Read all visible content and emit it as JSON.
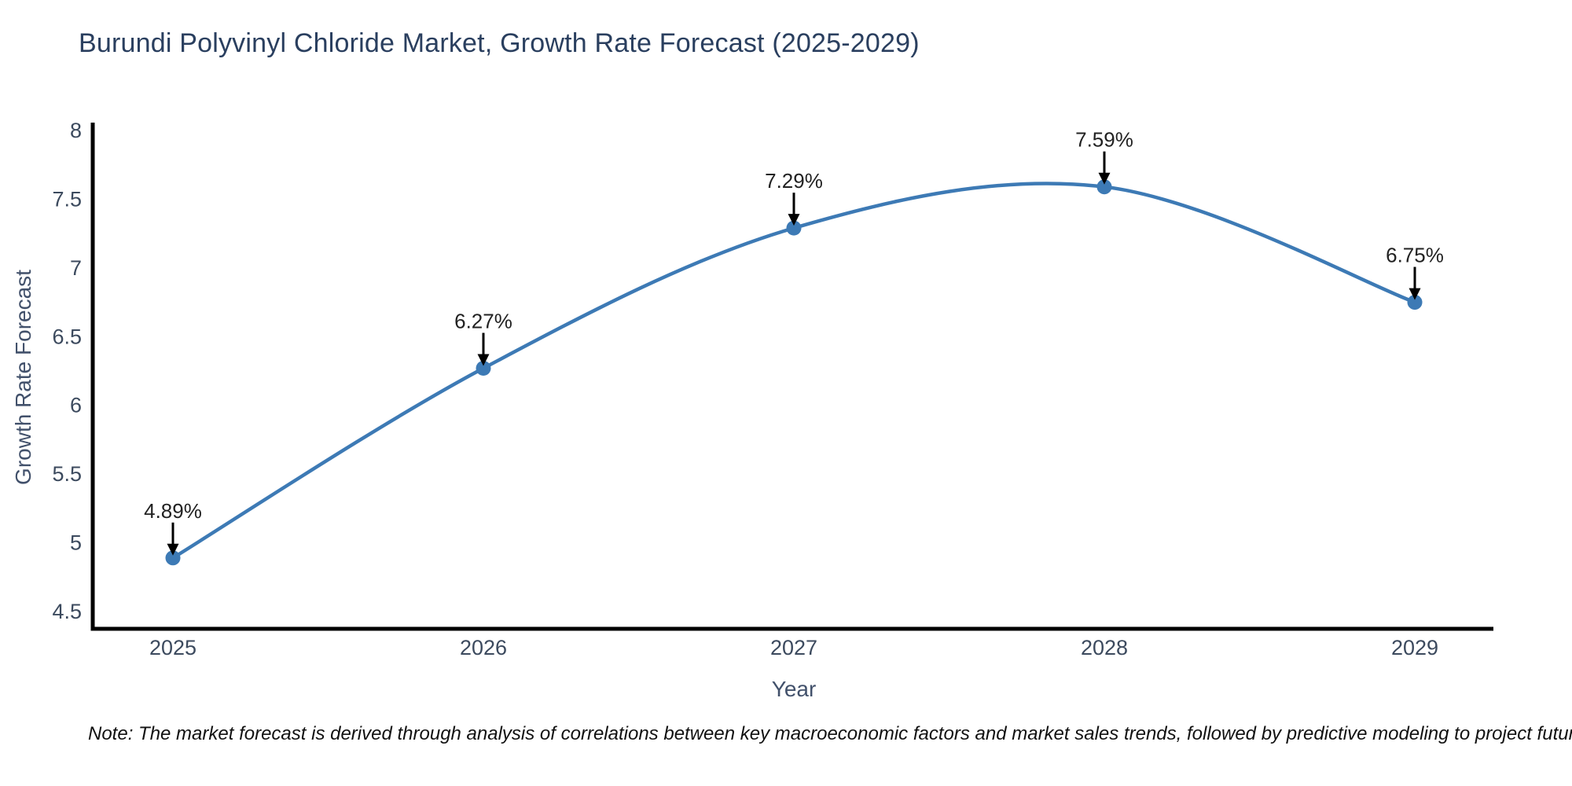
{
  "title": "Burundi Polyvinyl Chloride Market, Growth Rate Forecast (2025-2029)",
  "note": "Note: The market forecast is derived through analysis of correlations between key macroeconomic factors and market sales trends, followed by predictive modeling to project future sales",
  "chart_data": {
    "type": "line",
    "line_shape": "spline",
    "title": "Burundi Polyvinyl Chloride Market, Growth Rate Forecast (2025-2029)",
    "xlabel": "Year",
    "ylabel": "Growth Rate Forecast",
    "x": [
      "2025",
      "2026",
      "2027",
      "2028",
      "2029"
    ],
    "series": [
      {
        "name": "Growth Rate Forecast",
        "values": [
          4.89,
          6.27,
          7.29,
          7.59,
          6.75
        ],
        "point_labels": [
          "4.89%",
          "6.27%",
          "7.29%",
          "7.59%",
          "6.75%"
        ]
      }
    ],
    "yticks": [
      "4.5",
      "5",
      "5.5",
      "6",
      "6.5",
      "7",
      "7.5",
      "8"
    ],
    "ylim": [
      4.5,
      8
    ],
    "grid": false,
    "legend_position": "none",
    "annotations_style": "value label with down arrow to marker",
    "colors": {
      "line": "#3d7ab5",
      "marker": "#3d7ab5",
      "axis": "#000000",
      "arrow": "#000000",
      "title_text": "#2a3f5f",
      "tick_text": "#3c4a5e",
      "axis_title_text": "#42516b",
      "point_label_text": "#222222",
      "note_text": "#111111",
      "background": "#ffffff"
    }
  }
}
